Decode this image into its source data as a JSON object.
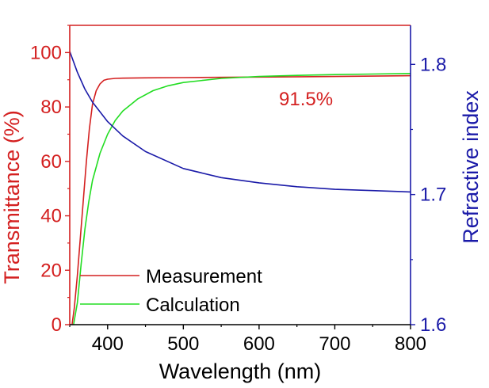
{
  "chart_data": {
    "type": "line",
    "xlabel": "Wavelength (nm)",
    "ylabel_left": "Transmittance (%)",
    "ylabel_right": "Refractive index",
    "xlim": [
      350,
      800
    ],
    "ylim_left": [
      0,
      110
    ],
    "ylim_right": [
      1.6,
      1.83
    ],
    "x_ticks": [
      400,
      500,
      600,
      700,
      800
    ],
    "y_left_ticks": [
      0,
      20,
      40,
      60,
      80,
      100
    ],
    "y_right_ticks": [
      1.6,
      1.7,
      1.8
    ],
    "annotation": "91.5%",
    "legend_position": "bottom-left",
    "colors": {
      "measurement": "#d42020",
      "calculation": "#22dd22",
      "refractive": "#1a1aa8",
      "left_axis": "#d42020",
      "right_axis": "#1a1aa8",
      "bottom_axis": "#000000"
    },
    "series": [
      {
        "name": "Measurement",
        "axis": "left",
        "x": [
          353,
          356,
          360,
          364,
          368,
          372,
          376,
          380,
          385,
          390,
          395,
          400,
          410,
          420,
          450,
          500,
          600,
          700,
          800
        ],
        "y": [
          0,
          6,
          18,
          32,
          46,
          60,
          72,
          81,
          86,
          88.5,
          89.8,
          90.2,
          90.5,
          90.6,
          90.7,
          90.8,
          91.0,
          91.2,
          91.5
        ]
      },
      {
        "name": "Calculation",
        "axis": "left",
        "x": [
          355,
          360,
          365,
          370,
          375,
          380,
          390,
          400,
          410,
          420,
          440,
          460,
          480,
          500,
          550,
          600,
          650,
          700,
          750,
          800
        ],
        "y": [
          0,
          8,
          22,
          35,
          45,
          53,
          63,
          70,
          75,
          78.5,
          83,
          86,
          87.8,
          89,
          90.5,
          91.2,
          91.6,
          91.9,
          92.1,
          92.3
        ]
      },
      {
        "name": "Refractive index",
        "axis": "right",
        "x": [
          350,
          360,
          370,
          380,
          400,
          420,
          450,
          500,
          550,
          600,
          650,
          700,
          750,
          800
        ],
        "y": [
          1.81,
          1.794,
          1.781,
          1.771,
          1.756,
          1.745,
          1.733,
          1.72,
          1.713,
          1.709,
          1.706,
          1.704,
          1.703,
          1.702
        ]
      }
    ]
  }
}
